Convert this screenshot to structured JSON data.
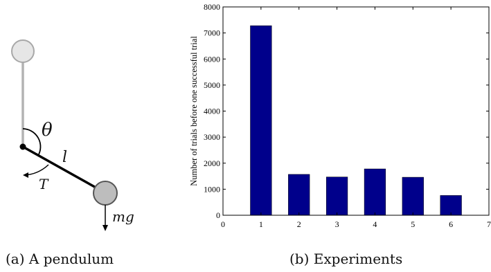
{
  "pendulum_figure": {
    "labels": {
      "angle": "θ",
      "length": "l",
      "torque": "T",
      "weight": "mg"
    },
    "caption": "(a) A pendulum",
    "colors": {
      "rod_upright": "#b3b3b3",
      "rod": "#000000",
      "bob_upright": "#e6e6e6",
      "bob": "#bdbdbd"
    }
  },
  "chart_caption": "(b) Experiments",
  "chart_data": {
    "type": "bar",
    "categories": [
      1,
      2,
      3,
      4,
      5,
      6
    ],
    "values": [
      7280,
      1570,
      1470,
      1780,
      1460,
      760
    ],
    "xlabel": "",
    "ylabel": "Number of trials before one successful trial",
    "xlim": [
      0,
      7
    ],
    "ylim": [
      0,
      8000
    ],
    "xticks": [
      0,
      1,
      2,
      3,
      4,
      5,
      6,
      7
    ],
    "yticks": [
      0,
      1000,
      2000,
      3000,
      4000,
      5000,
      6000,
      7000,
      8000
    ],
    "grid": false,
    "bar_color": "#00008b"
  }
}
